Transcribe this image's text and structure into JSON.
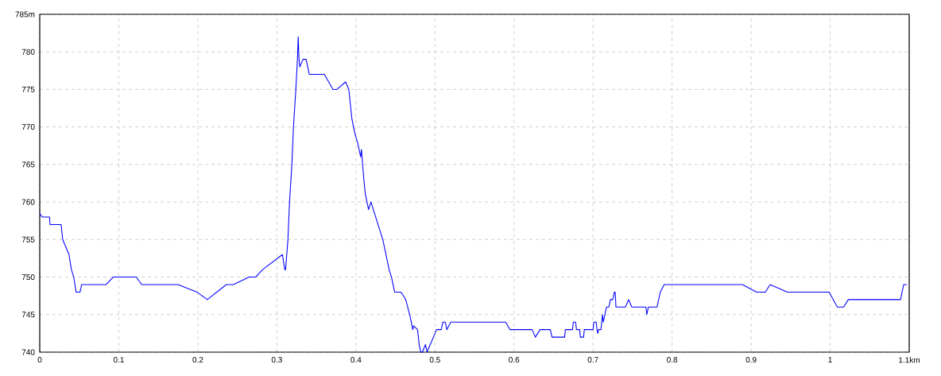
{
  "chart_data": {
    "type": "line",
    "xlim": [
      0,
      1.1
    ],
    "ylim": [
      740,
      785
    ],
    "xticks": [
      0,
      0.1,
      0.2,
      0.3,
      0.4,
      0.5,
      0.6,
      0.7,
      0.8,
      0.9,
      1,
      {
        "value": 1.1,
        "label": "1.1km"
      }
    ],
    "yticks": [
      740,
      745,
      750,
      755,
      760,
      765,
      770,
      775,
      780,
      {
        "value": 785,
        "label": "785m"
      }
    ],
    "grid": true,
    "line_style": "solid",
    "marker": "none",
    "series": [
      {
        "color": "#0000ff",
        "x": [
          0,
          0.003,
          0.0124,
          0.013,
          0.027,
          0.029,
          0.033,
          0.037,
          0.04,
          0.043,
          0.046,
          0.051,
          0.053,
          0.084,
          0.093,
          0.122,
          0.129,
          0.175,
          0.199,
          0.212,
          0.236,
          0.245,
          0.265,
          0.273,
          0.282,
          0.307,
          0.31,
          0.311,
          0.314,
          0.316,
          0.319,
          0.321,
          0.324,
          0.326,
          0.327,
          0.328,
          0.329,
          0.333,
          0.337,
          0.341,
          0.36,
          0.371,
          0.376,
          0.387,
          0.391,
          0.395,
          0.399,
          0.402,
          0.406,
          0.407,
          0.41,
          0.412,
          0.416,
          0.419,
          0.422,
          0.428,
          0.434,
          0.438,
          0.442,
          0.445,
          0.449,
          0.457,
          0.463,
          0.468,
          0.47,
          0.472,
          0.473,
          0.478,
          0.48,
          0.482,
          0.484,
          0.488,
          0.49,
          0.494,
          0.498,
          0.502,
          0.508,
          0.51,
          0.513,
          0.515,
          0.52,
          0.5895,
          0.595,
          0.623,
          0.627,
          0.633,
          0.646,
          0.648,
          0.664,
          0.665,
          0.674,
          0.675,
          0.678,
          0.679,
          0.683,
          0.684,
          0.688,
          0.689,
          0.7,
          0.701,
          0.704,
          0.705,
          0.706,
          0.707,
          0.71,
          0.712,
          0.713,
          0.717,
          0.72,
          0.722,
          0.725,
          0.727,
          0.728,
          0.729,
          0.741,
          0.745,
          0.749,
          0.767,
          0.768,
          0.77,
          0.781,
          0.785,
          0.79,
          0.889,
          0.907,
          0.918,
          0.924,
          0.946,
          0.9987,
          1.009,
          1.017,
          1.023,
          1.089,
          1.091,
          1.093,
          1.097
        ],
        "values": [
          758.5,
          758,
          758,
          757,
          757,
          755,
          754,
          753,
          751,
          750,
          748,
          748,
          749,
          749,
          750,
          750,
          749,
          749,
          748,
          747,
          749,
          749,
          750,
          750,
          751,
          753,
          751,
          751,
          755,
          760,
          765,
          770,
          775,
          779,
          782,
          779,
          778,
          779,
          779,
          777,
          777,
          775,
          775,
          776,
          775,
          771,
          769,
          768,
          766,
          767,
          763,
          761,
          759,
          760,
          759,
          757,
          755,
          753,
          751,
          750,
          748,
          748,
          747,
          745,
          744,
          743,
          743.5,
          743,
          741,
          740,
          740,
          741,
          740,
          741,
          742,
          743,
          743,
          744,
          744,
          743,
          744,
          744,
          743,
          743,
          742,
          743,
          743,
          742,
          742,
          743,
          743,
          744,
          744,
          743,
          743,
          742,
          742,
          743,
          743,
          744,
          744,
          743,
          742.5,
          743,
          743,
          745,
          744,
          746,
          746,
          747,
          747,
          748,
          748,
          746,
          746,
          747,
          746,
          746,
          745,
          746,
          746,
          748,
          749,
          749,
          748,
          748,
          749,
          748,
          748,
          746,
          746,
          747,
          747,
          748,
          749,
          749
        ]
      }
    ]
  }
}
